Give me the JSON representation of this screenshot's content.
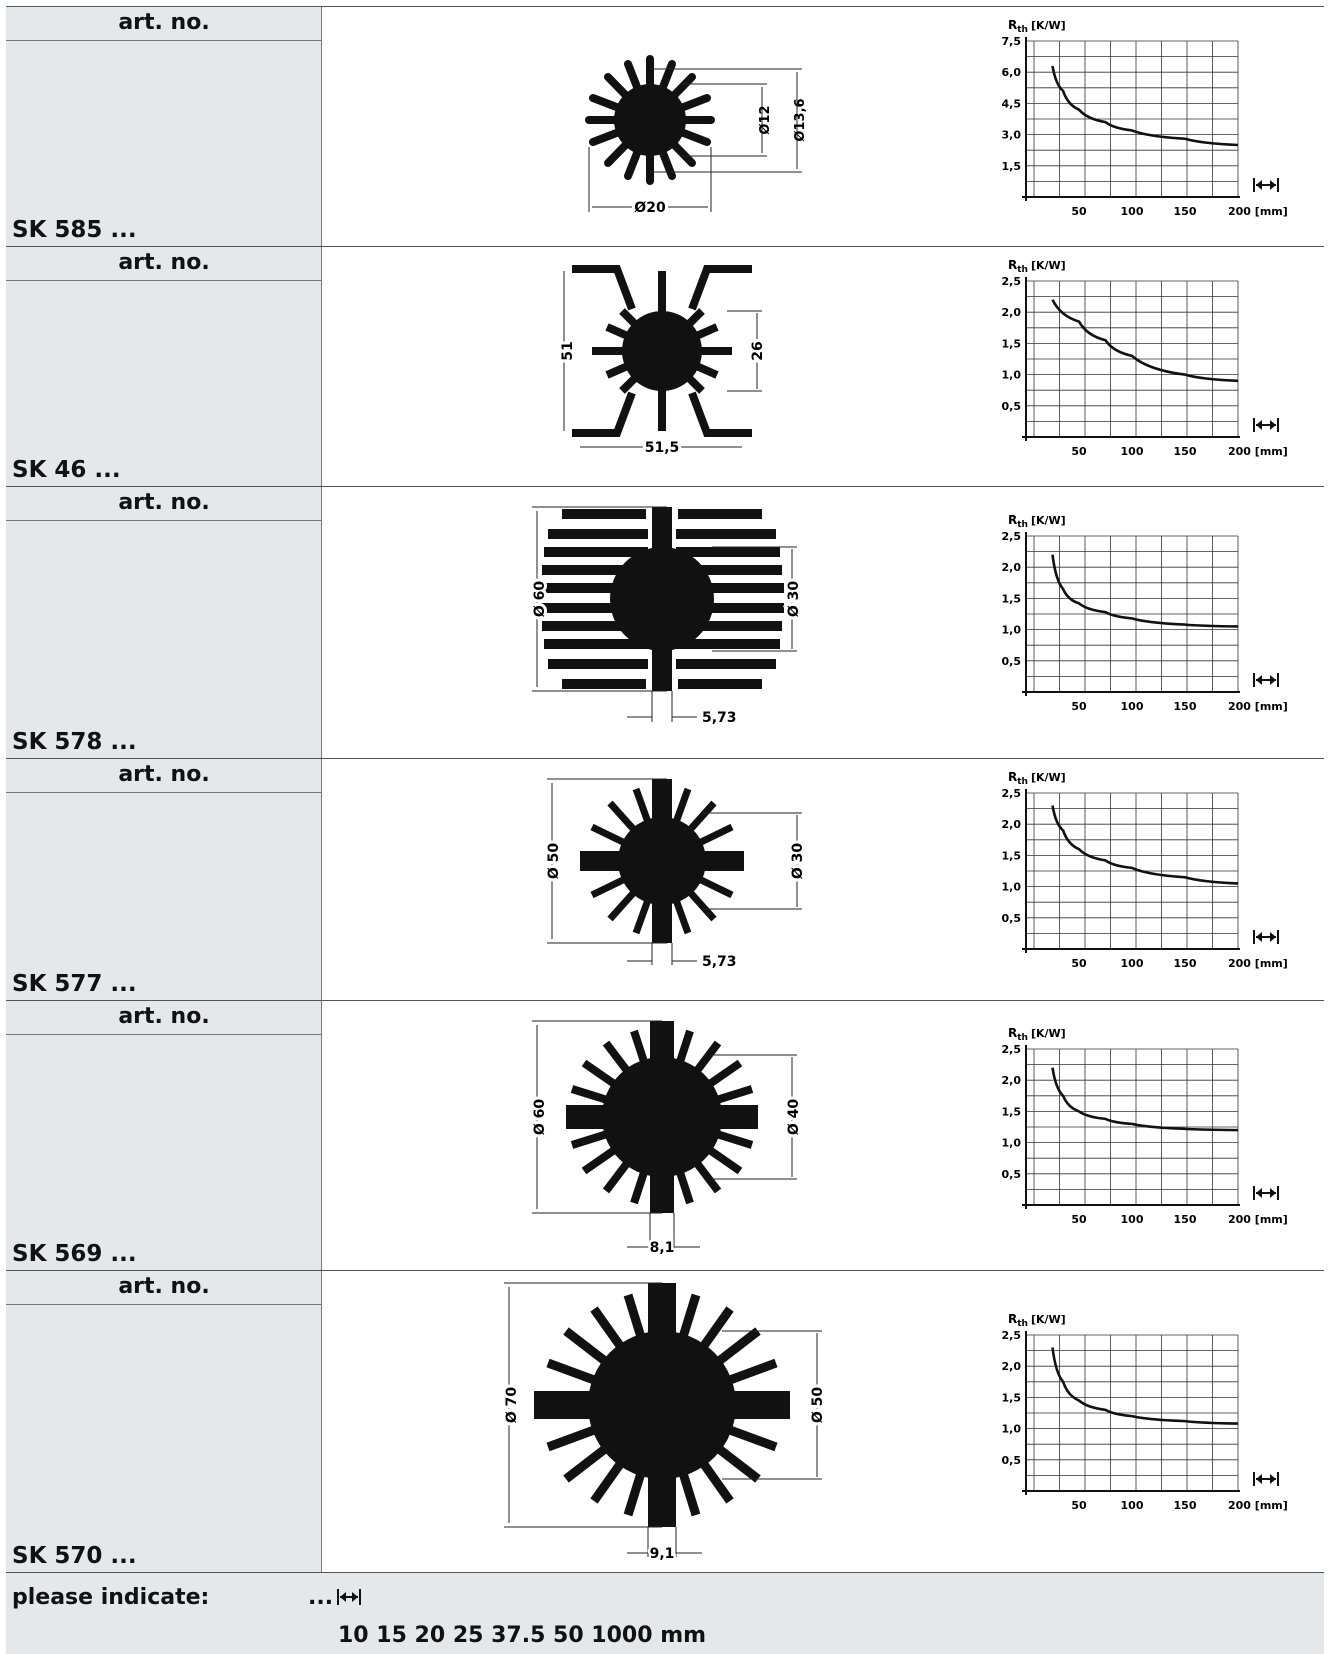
{
  "rows": [
    {
      "art_label": "art. no.",
      "model": "SK 585 ...",
      "dim_a": "Ø12",
      "dim_b": "Ø13,6",
      "dim_c": "Ø20",
      "chart": {
        "type": "line",
        "ylabel": "R",
        "ylabel_sub": "th",
        "yunit": "[K/W]",
        "y_ticks": [
          "7,5",
          "6,0",
          "4,5",
          "3,0",
          "1,5"
        ],
        "ylim": [
          0,
          7.5
        ],
        "x_ticks": [
          "50",
          "100",
          "150",
          "200 [mm]"
        ],
        "x_tick_values": [
          50,
          100,
          150,
          200
        ],
        "xlim": [
          0,
          200
        ],
        "x": [
          25,
          35,
          50,
          75,
          100,
          150,
          200
        ],
        "y": [
          6.3,
          5.1,
          4.2,
          3.6,
          3.2,
          2.8,
          2.5
        ]
      }
    },
    {
      "art_label": "art. no.",
      "model": "SK 46 ...",
      "dim_a": "51",
      "dim_b": "26",
      "dim_c": "51,5",
      "chart": {
        "type": "line",
        "ylabel": "R",
        "ylabel_sub": "th",
        "yunit": "[K/W]",
        "y_ticks": [
          "2,5",
          "2,0",
          "1,5",
          "1,0",
          "0,5"
        ],
        "ylim": [
          0,
          2.5
        ],
        "x_ticks": [
          "50",
          "100",
          "150",
          "200 [mm]"
        ],
        "x_tick_values": [
          50,
          100,
          150,
          200
        ],
        "xlim": [
          0,
          200
        ],
        "x": [
          25,
          50,
          75,
          100,
          150,
          200
        ],
        "y": [
          2.2,
          1.85,
          1.55,
          1.3,
          1.0,
          0.9
        ]
      }
    },
    {
      "art_label": "art. no.",
      "model": "SK 578 ...",
      "dim_a": "Ø 60",
      "dim_b": "Ø 30",
      "dim_c": "5,73",
      "chart": {
        "type": "line",
        "ylabel": "R",
        "ylabel_sub": "th",
        "yunit": "[K/W]",
        "y_ticks": [
          "2,5",
          "2,0",
          "1,5",
          "1,0",
          "0,5"
        ],
        "ylim": [
          0,
          2.5
        ],
        "x_ticks": [
          "50",
          "100",
          "150",
          "200 [mm]"
        ],
        "x_tick_values": [
          50,
          100,
          150,
          200
        ],
        "xlim": [
          0,
          200
        ],
        "x": [
          25,
          35,
          50,
          75,
          100,
          150,
          200
        ],
        "y": [
          2.2,
          1.65,
          1.42,
          1.28,
          1.18,
          1.08,
          1.05
        ]
      }
    },
    {
      "art_label": "art. no.",
      "model": "SK 577 ...",
      "dim_a": "Ø 50",
      "dim_b": "Ø 30",
      "dim_c": "5,73",
      "chart": {
        "type": "line",
        "ylabel": "R",
        "ylabel_sub": "th",
        "yunit": "[K/W]",
        "y_ticks": [
          "2,5",
          "2,0",
          "1,5",
          "1,0",
          "0,5"
        ],
        "ylim": [
          0,
          2.5
        ],
        "x_ticks": [
          "50",
          "100",
          "150",
          "200 [mm]"
        ],
        "x_tick_values": [
          50,
          100,
          150,
          200
        ],
        "xlim": [
          0,
          200
        ],
        "x": [
          25,
          35,
          50,
          75,
          100,
          150,
          200
        ],
        "y": [
          2.3,
          1.9,
          1.6,
          1.42,
          1.3,
          1.15,
          1.05
        ]
      }
    },
    {
      "art_label": "art. no.",
      "model": "SK 569 ...",
      "dim_a": "Ø 60",
      "dim_b": "Ø 40",
      "dim_c": "8,1",
      "chart": {
        "type": "line",
        "ylabel": "R",
        "ylabel_sub": "th",
        "yunit": "[K/W]",
        "y_ticks": [
          "2,5",
          "2,0",
          "1,5",
          "1,0",
          "0,5"
        ],
        "ylim": [
          0,
          2.5
        ],
        "x_ticks": [
          "50",
          "100",
          "150",
          "200 [mm]"
        ],
        "x_tick_values": [
          50,
          100,
          150,
          200
        ],
        "xlim": [
          0,
          200
        ],
        "x": [
          25,
          35,
          50,
          75,
          100,
          150,
          200
        ],
        "y": [
          2.2,
          1.75,
          1.5,
          1.38,
          1.3,
          1.22,
          1.2
        ]
      }
    },
    {
      "art_label": "art. no.",
      "model": "SK 570 ...",
      "dim_a": "Ø 70",
      "dim_b": "Ø 50",
      "dim_c": "9,1",
      "chart": {
        "type": "line",
        "ylabel": "R",
        "ylabel_sub": "th",
        "yunit": "[K/W]",
        "y_ticks": [
          "2,5",
          "2,0",
          "1,5",
          "1,0",
          "0,5"
        ],
        "ylim": [
          0,
          2.5
        ],
        "x_ticks": [
          "50",
          "100",
          "150",
          "200 [mm]"
        ],
        "x_tick_values": [
          50,
          100,
          150,
          200
        ],
        "xlim": [
          0,
          200
        ],
        "x": [
          25,
          35,
          50,
          75,
          100,
          150,
          200
        ],
        "y": [
          2.3,
          1.75,
          1.45,
          1.3,
          1.2,
          1.12,
          1.08
        ]
      }
    }
  ],
  "footer": {
    "label": "please indicate:",
    "ellipsis": "...",
    "lengths": "10  15  20  25  37.5  50  1000 mm"
  }
}
